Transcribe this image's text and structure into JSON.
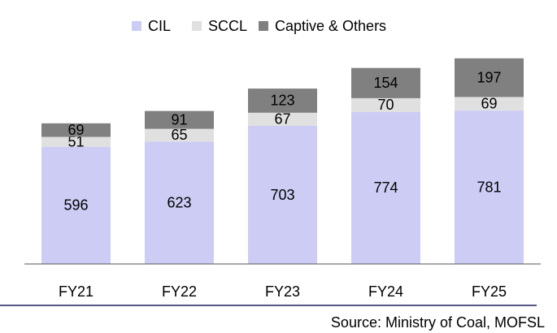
{
  "chart_data": {
    "type": "stacked_bar",
    "categories": [
      "FY21",
      "FY22",
      "FY23",
      "FY24",
      "FY25"
    ],
    "series": [
      {
        "name": "CIL",
        "color": "#ccccf5",
        "values": [
          596,
          623,
          703,
          774,
          781
        ]
      },
      {
        "name": "SCCL",
        "color": "#e0e0e0",
        "values": [
          51,
          65,
          67,
          70,
          69
        ]
      },
      {
        "name": "Captive & Others",
        "color": "#808080",
        "values": [
          69,
          91,
          123,
          154,
          197
        ]
      }
    ],
    "ylim": [
      0,
      1100
    ],
    "legend": "top",
    "source": "Source: Ministry of Coal, MOFSL"
  }
}
